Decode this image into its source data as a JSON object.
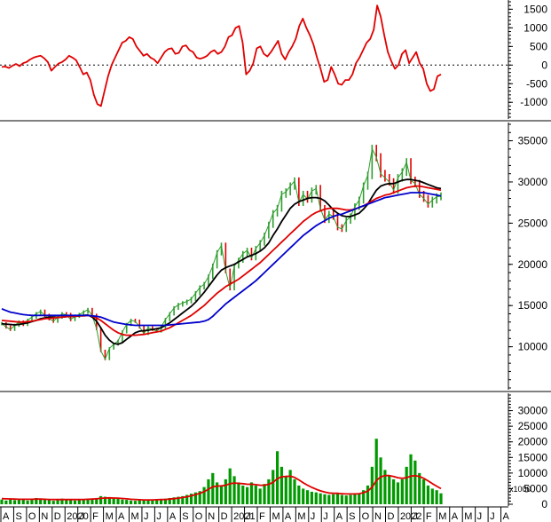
{
  "chart_data": [
    {
      "type": "line",
      "panel": "oscillator",
      "ylim": [
        -1400,
        1700
      ],
      "yticks": [
        1500,
        1000,
        500,
        0,
        -500,
        -1000
      ],
      "ytick_labels": [
        "1500",
        "1000",
        "500",
        "0",
        "-500",
        "-1000"
      ],
      "zero_line": "dotted",
      "series": [
        {
          "color": "#e00000",
          "values": [
            -50,
            -40,
            -80,
            -20,
            30,
            -30,
            50,
            80,
            150,
            200,
            230,
            250,
            180,
            80,
            -150,
            -50,
            40,
            80,
            150,
            250,
            200,
            130,
            -50,
            -250,
            -200,
            -400,
            -800,
            -1050,
            -1100,
            -700,
            -300,
            0,
            200,
            400,
            600,
            650,
            750,
            700,
            500,
            380,
            250,
            300,
            200,
            150,
            50,
            200,
            350,
            430,
            450,
            300,
            330,
            500,
            530,
            400,
            350,
            200,
            170,
            200,
            250,
            350,
            400,
            300,
            350,
            500,
            750,
            800,
            1000,
            1050,
            600,
            -250,
            -150,
            50,
            450,
            500,
            300,
            230,
            350,
            500,
            650,
            300,
            150,
            350,
            500,
            700,
            1050,
            1250,
            1000,
            800,
            550,
            200,
            -100,
            -450,
            -400,
            -50,
            -250,
            -500,
            -530,
            -400,
            -400,
            -250,
            50,
            200,
            400,
            600,
            700,
            950,
            1600,
            1300,
            800,
            350,
            100,
            -100,
            0,
            300,
            400,
            50,
            200,
            350,
            50,
            -100,
            -500,
            -700,
            -650,
            -300,
            -250
          ]
        }
      ]
    },
    {
      "type": "line",
      "panel": "price",
      "ylim": [
        5000,
        37000
      ],
      "yticks": [
        35000,
        30000,
        25000,
        20000,
        15000,
        10000
      ],
      "ytick_labels": [
        "35000",
        "30000",
        "25000",
        "20000",
        "15000",
        "10000"
      ],
      "series": [
        {
          "color": "#2e9e2e",
          "values": [
            12800,
            12400,
            12100,
            12600,
            13000,
            12700,
            13200,
            13600,
            14000,
            14300,
            13800,
            13400,
            13100,
            13600,
            14000,
            13900,
            13300,
            13700,
            13900,
            14200,
            14500,
            13800,
            12200,
            9500,
            8500,
            9800,
            10300,
            10700,
            11800,
            12700,
            13200,
            13100,
            12400,
            11600,
            12300,
            12100,
            11900,
            12400,
            13300,
            14000,
            14700,
            15100,
            15300,
            15500,
            15800,
            16500,
            17200,
            17600,
            18500,
            19800,
            21400,
            22300,
            19200,
            17100,
            19800,
            20500,
            21300,
            21700,
            20800,
            21900,
            22600,
            23500,
            24800,
            26200,
            26800,
            28500,
            28800,
            29500,
            30100,
            27500,
            28500,
            27900,
            28900,
            29200,
            26800,
            25400,
            26100,
            25800,
            24500,
            24300,
            25300,
            25800,
            27000,
            27800,
            29500,
            30800,
            34000,
            33000,
            31000,
            30500,
            30000,
            29000,
            30500,
            31200,
            32400,
            30200,
            29800,
            28500,
            28000,
            27300,
            27800,
            28200,
            28300
          ]
        },
        {
          "color": "#000000",
          "values": [
            12800,
            12750,
            12700,
            12650,
            12700,
            12800,
            12900,
            13050,
            13200,
            13400,
            13500,
            13600,
            13600,
            13550,
            13600,
            13650,
            13700,
            13700,
            13750,
            13800,
            13850,
            13600,
            13100,
            12300,
            11400,
            10800,
            10400,
            10300,
            10500,
            10900,
            11300,
            11700,
            11900,
            11950,
            12000,
            12100,
            12200,
            12300,
            12600,
            12900,
            13300,
            13700,
            14100,
            14500,
            14900,
            15400,
            16000,
            16600,
            17300,
            18000,
            18700,
            19300,
            19600,
            19800,
            20000,
            20300,
            20600,
            20900,
            21100,
            21300,
            21600,
            22000,
            22600,
            23500,
            24300,
            25200,
            26000,
            26800,
            27300,
            27600,
            27800,
            28000,
            28100,
            28100,
            28000,
            27700,
            27200,
            26600,
            26200,
            25900,
            25800,
            25800,
            26000,
            26200,
            26700,
            27300,
            28200,
            29000,
            29500,
            29700,
            29800,
            29800,
            30000,
            30200,
            30300,
            30300,
            30200,
            30100,
            29900,
            29700,
            29500,
            29300,
            29200
          ]
        },
        {
          "color": "#e00000",
          "values": [
            13200,
            13150,
            13100,
            13050,
            13000,
            13000,
            13050,
            13100,
            13200,
            13300,
            13400,
            13450,
            13500,
            13550,
            13600,
            13650,
            13700,
            13700,
            13750,
            13750,
            13800,
            13700,
            13500,
            13200,
            12800,
            12400,
            12000,
            11700,
            11500,
            11400,
            11400,
            11400,
            11450,
            11500,
            11600,
            11700,
            11800,
            11900,
            12100,
            12300,
            12600,
            12900,
            13200,
            13500,
            13800,
            14200,
            14600,
            15000,
            15500,
            16000,
            16500,
            16900,
            17300,
            17600,
            17900,
            18200,
            18600,
            19000,
            19400,
            19800,
            20200,
            20700,
            21200,
            21700,
            22200,
            22700,
            23200,
            23700,
            24200,
            24700,
            25200,
            25600,
            26000,
            26300,
            26500,
            26700,
            26800,
            26800,
            26800,
            26700,
            26600,
            26600,
            26700,
            26900,
            27100,
            27400,
            27700,
            28000,
            28200,
            28400,
            28500,
            28700,
            28900,
            29100,
            29300,
            29400,
            29500,
            29500,
            29400,
            29300,
            29200,
            29100,
            29000
          ]
        },
        {
          "color": "#0000cc",
          "values": [
            14600,
            14400,
            14200,
            14100,
            14000,
            13900,
            13850,
            13800,
            13800,
            13800,
            13800,
            13800,
            13800,
            13800,
            13800,
            13800,
            13800,
            13800,
            13800,
            13800,
            13800,
            13750,
            13700,
            13600,
            13400,
            13200,
            13000,
            12900,
            12800,
            12700,
            12650,
            12600,
            12600,
            12600,
            12600,
            12600,
            12600,
            12600,
            12600,
            12650,
            12700,
            12750,
            12800,
            12850,
            12900,
            12950,
            13000,
            13100,
            13300,
            13700,
            14200,
            14700,
            15200,
            15600,
            16000,
            16400,
            16800,
            17200,
            17600,
            18000,
            18500,
            19000,
            19500,
            20000,
            20500,
            21000,
            21500,
            22000,
            22500,
            23000,
            23500,
            23900,
            24300,
            24700,
            25000,
            25300,
            25600,
            25800,
            26000,
            26100,
            26300,
            26500,
            26700,
            26900,
            27100,
            27300,
            27500,
            27700,
            27900,
            28100,
            28200,
            28300,
            28400,
            28500,
            28600,
            28700,
            28700,
            28700,
            28700,
            28600,
            28500,
            28400,
            28300
          ]
        }
      ]
    },
    {
      "type": "bar",
      "panel": "volume",
      "ylim": [
        0,
        35000
      ],
      "yticks": [
        30000,
        25000,
        20000,
        15000,
        10000,
        5000,
        0
      ],
      "ytick_labels": [
        "30000",
        "25000",
        "20000",
        "15000",
        "10000",
        "5000",
        "0"
      ],
      "unit_label": "x1000",
      "series": [
        {
          "color": "#009900",
          "type": "bar",
          "values": [
            1500,
            1200,
            1800,
            1300,
            1400,
            1600,
            1200,
            1500,
            2000,
            1700,
            1400,
            1300,
            1100,
            1600,
            1800,
            1500,
            1300,
            1200,
            1400,
            1600,
            1500,
            1700,
            2000,
            2600,
            2400,
            2200,
            1900,
            1700,
            1500,
            1400,
            1200,
            1100,
            1300,
            1200,
            1400,
            1500,
            1600,
            1700,
            1800,
            2000,
            2200,
            2400,
            2600,
            3000,
            3400,
            3800,
            4200,
            5500,
            8000,
            10000,
            7000,
            6000,
            8000,
            11500,
            9000,
            7000,
            6000,
            5500,
            7000,
            6000,
            5000,
            6500,
            8000,
            11000,
            17000,
            12000,
            9000,
            11000,
            8000,
            6000,
            5000,
            4500,
            4000,
            3800,
            3500,
            3200,
            3000,
            3200,
            3500,
            3000,
            2800,
            3000,
            3200,
            3500,
            4500,
            6000,
            12000,
            21000,
            15000,
            11000,
            9000,
            8000,
            7000,
            8000,
            12000,
            16000,
            14000,
            10000,
            8000,
            6000,
            5000,
            4500,
            3500
          ]
        },
        {
          "color": "#e00000",
          "type": "line",
          "values": [
            1800,
            1750,
            1700,
            1650,
            1600,
            1600,
            1600,
            1600,
            1650,
            1650,
            1600,
            1550,
            1500,
            1500,
            1500,
            1500,
            1500,
            1500,
            1500,
            1550,
            1600,
            1650,
            1750,
            1900,
            2000,
            2050,
            2000,
            1950,
            1850,
            1750,
            1600,
            1500,
            1450,
            1400,
            1400,
            1400,
            1450,
            1500,
            1550,
            1650,
            1800,
            1950,
            2150,
            2400,
            2700,
            3100,
            3500,
            4000,
            4800,
            5600,
            5800,
            5900,
            6100,
            6600,
            6800,
            6700,
            6600,
            6400,
            6400,
            6300,
            6100,
            6100,
            6400,
            7000,
            8200,
            8800,
            8900,
            9000,
            8600,
            7800,
            6900,
            6100,
            5400,
            4800,
            4300,
            3900,
            3600,
            3500,
            3500,
            3400,
            3300,
            3300,
            3300,
            3400,
            3700,
            4200,
            5500,
            7600,
            8800,
            9200,
            9200,
            8900,
            8500,
            8300,
            8500,
            9000,
            9200,
            8900,
            8300,
            7500,
            6600,
            5800,
            5000
          ]
        }
      ]
    }
  ],
  "x_axis": {
    "months": [
      "A",
      "S",
      "O",
      "N",
      "D",
      "2020",
      "J",
      "F",
      "M",
      "A",
      "M",
      "J",
      "J",
      "A",
      "S",
      "O",
      "N",
      "D",
      "2021",
      "J",
      "F",
      "M",
      "A",
      "M",
      "J",
      "J",
      "A",
      "S",
      "O",
      "N",
      "D",
      "2022",
      "J",
      "F",
      "M",
      "A",
      "M",
      "J",
      "J",
      "A"
    ]
  },
  "colors": {
    "grid_dotted": "#000000",
    "axis": "#000000"
  }
}
